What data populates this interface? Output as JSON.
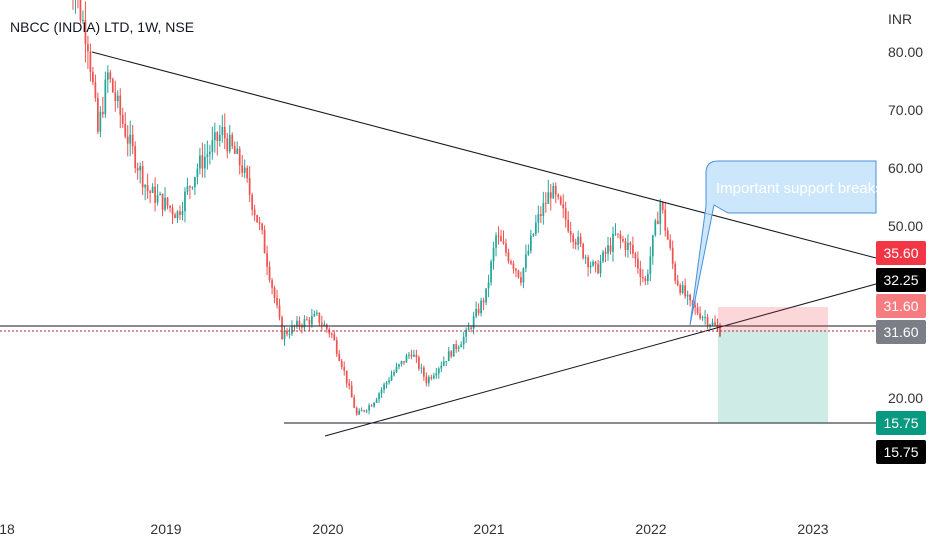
{
  "chart_data": {
    "type": "candlestick",
    "title": "NBCC (INDIA) LTD, 1W, NSE",
    "currency_label": "INR",
    "y_ticks": [
      "80.00",
      "70.00",
      "60.00",
      "50.00",
      "20.00"
    ],
    "x_ticks": [
      "18",
      "2019",
      "2020",
      "2021",
      "2022",
      "2023"
    ],
    "up_color": "#26a69a",
    "down_color": "#ef5350",
    "price_badges": [
      {
        "label": "35.60",
        "bg": "#f23645",
        "fg": "#ffffff"
      },
      {
        "label": "32.25",
        "bg": "#000000",
        "fg": "#ffffff"
      },
      {
        "label": "31.60",
        "bg": "#f77c80",
        "fg": "#ffffff"
      },
      {
        "label": "31.60",
        "bg": "#7b7e86",
        "fg": "#ffffff"
      },
      {
        "label": "15.75",
        "bg": "#089981",
        "fg": "#ffffff"
      },
      {
        "label": "15.75",
        "bg": "#000000",
        "fg": "#ffffff"
      }
    ],
    "annotation": "Important support breaks",
    "key_levels": {
      "entry": 31.6,
      "stop": 35.6,
      "target": 15.75,
      "breakdown": 32.25
    },
    "series_summary": {
      "high_2018": 95,
      "low_2020": 15.75,
      "high_2021": 58,
      "last": 31.6
    }
  }
}
